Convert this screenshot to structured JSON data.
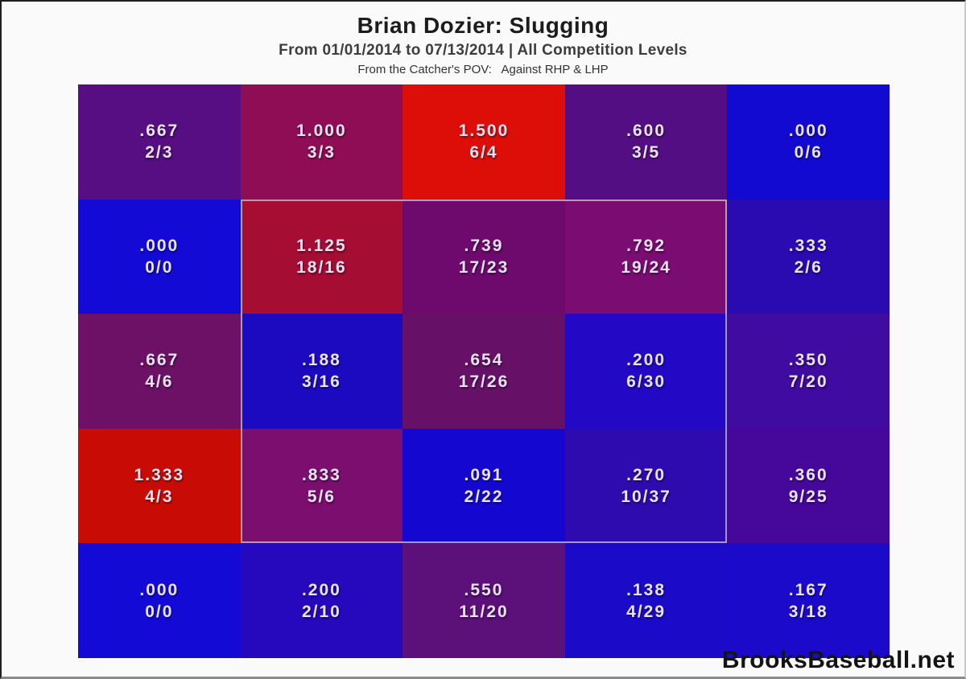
{
  "header": {
    "title": "Brian Dozier: Slugging",
    "subtitle": "From 01/01/2014 to 07/13/2014 | All Competition Levels",
    "pov_note": "From the Catcher's POV:   Against RHP & LHP"
  },
  "footer": {
    "brand": "BrooksBaseball.net"
  },
  "colors": {
    "cell_text": "#e9e3f3",
    "strike_zone_outline": "#c3becd",
    "background": "#fafafa",
    "low_value_blue": "#1409d2",
    "high_value_red": "#dd0d08"
  },
  "chart_data": {
    "type": "heatmap",
    "title": "Brian Dozier: Slugging",
    "subtitle": "From 01/01/2014 to 07/13/2014 | All Competition Levels",
    "annotation": "From the Catcher's POV:   Against RHP & LHP",
    "grid": {
      "rows": 5,
      "cols": 5
    },
    "strike_zone_outline_cells": "rows 2-4, cols 2-4",
    "metric": "slugging percentage (top line) and bases/at-bats ratio (bottom line)",
    "cells": [
      {
        "row": 1,
        "col": 1,
        "slg": ".667",
        "ratio": "2/3",
        "value": 0.667,
        "color": "#560e82"
      },
      {
        "row": 1,
        "col": 2,
        "slg": "1.000",
        "ratio": "3/3",
        "value": 1.0,
        "color": "#8e0d55"
      },
      {
        "row": 1,
        "col": 3,
        "slg": "1.500",
        "ratio": "6/4",
        "value": 1.5,
        "color": "#dd0d08"
      },
      {
        "row": 1,
        "col": 4,
        "slg": ".600",
        "ratio": "3/5",
        "value": 0.6,
        "color": "#530e83"
      },
      {
        "row": 1,
        "col": 5,
        "slg": ".000",
        "ratio": "0/6",
        "value": 0.0,
        "color": "#120ad0"
      },
      {
        "row": 2,
        "col": 1,
        "slg": ".000",
        "ratio": "0/0",
        "value": 0.0,
        "color": "#130ad6"
      },
      {
        "row": 2,
        "col": 2,
        "slg": "1.125",
        "ratio": "18/16",
        "value": 1.125,
        "color": "#a50d33"
      },
      {
        "row": 2,
        "col": 3,
        "slg": ".739",
        "ratio": "17/23",
        "value": 0.739,
        "color": "#6e0a6e"
      },
      {
        "row": 2,
        "col": 4,
        "slg": ".792",
        "ratio": "19/24",
        "value": 0.792,
        "color": "#7a0c72"
      },
      {
        "row": 2,
        "col": 5,
        "slg": ".333",
        "ratio": "2/6",
        "value": 0.333,
        "color": "#2a0bb2"
      },
      {
        "row": 3,
        "col": 1,
        "slg": ".667",
        "ratio": "4/6",
        "value": 0.667,
        "color": "#6d1166"
      },
      {
        "row": 3,
        "col": 2,
        "slg": ".188",
        "ratio": "3/16",
        "value": 0.188,
        "color": "#1c0ac0"
      },
      {
        "row": 3,
        "col": 3,
        "slg": ".654",
        "ratio": "17/26",
        "value": 0.654,
        "color": "#661067"
      },
      {
        "row": 3,
        "col": 4,
        "slg": ".200",
        "ratio": "6/30",
        "value": 0.2,
        "color": "#2308c6"
      },
      {
        "row": 3,
        "col": 5,
        "slg": ".350",
        "ratio": "7/20",
        "value": 0.35,
        "color": "#3f0ba0"
      },
      {
        "row": 4,
        "col": 1,
        "slg": "1.333",
        "ratio": "4/3",
        "value": 1.333,
        "color": "#c90b05"
      },
      {
        "row": 4,
        "col": 2,
        "slg": ".833",
        "ratio": "5/6",
        "value": 0.833,
        "color": "#7b0e6f"
      },
      {
        "row": 4,
        "col": 3,
        "slg": ".091",
        "ratio": "2/22",
        "value": 0.091,
        "color": "#1408d0"
      },
      {
        "row": 4,
        "col": 4,
        "slg": ".270",
        "ratio": "10/37",
        "value": 0.27,
        "color": "#2d0bae"
      },
      {
        "row": 4,
        "col": 5,
        "slg": ".360",
        "ratio": "9/25",
        "value": 0.36,
        "color": "#45089b"
      },
      {
        "row": 5,
        "col": 1,
        "slg": ".000",
        "ratio": "0/0",
        "value": 0.0,
        "color": "#140ad6"
      },
      {
        "row": 5,
        "col": 2,
        "slg": ".200",
        "ratio": "2/10",
        "value": 0.2,
        "color": "#2609bd"
      },
      {
        "row": 5,
        "col": 3,
        "slg": ".550",
        "ratio": "11/20",
        "value": 0.55,
        "color": "#5c107a"
      },
      {
        "row": 5,
        "col": 4,
        "slg": ".138",
        "ratio": "4/29",
        "value": 0.138,
        "color": "#1b0ac8"
      },
      {
        "row": 5,
        "col": 5,
        "slg": ".167",
        "ratio": "3/18",
        "value": 0.167,
        "color": "#1c0aca"
      }
    ]
  }
}
